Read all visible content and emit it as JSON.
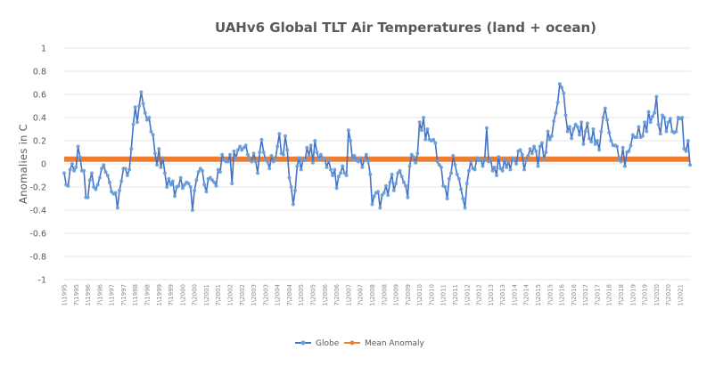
{
  "chart_data": {
    "type": "line",
    "title": "UAHv6 Global TLT Air Temperatures (land + ocean)",
    "xlabel": "",
    "ylabel": "Anomalies in C",
    "ylim": [
      -1,
      1
    ],
    "yticks": [
      "1",
      "0.8",
      "0.6",
      "0.4",
      "0.2",
      "0",
      "-0.2",
      "-0.4",
      "-0.6",
      "-0.8",
      "-1"
    ],
    "ytick_values": [
      1,
      0.8,
      0.6,
      0.4,
      0.2,
      0,
      -0.2,
      -0.4,
      -0.6,
      -0.8,
      -1
    ],
    "x_range": [
      "1\\1995",
      "1\\2021"
    ],
    "x_tick_labels": [
      "1\\1995",
      "7\\1995",
      "1\\1996",
      "7\\1996",
      "1\\1997",
      "7\\1997",
      "1\\1998",
      "7\\1998",
      "1\\1999",
      "7\\1999",
      "1\\2000",
      "7\\2000",
      "1\\2001",
      "7\\2001",
      "1\\2002",
      "7\\2002",
      "1\\2003",
      "7\\2003",
      "1\\2004",
      "7\\2004",
      "1\\2005",
      "7\\2005",
      "1\\2006",
      "7\\2006",
      "1\\2007",
      "7\\2007",
      "1\\2008",
      "7\\2008",
      "1\\2009",
      "7\\2009",
      "1\\2010",
      "7\\2010",
      "1\\2011",
      "7\\2011",
      "1\\2012",
      "7\\2012",
      "1\\2013",
      "7\\2013",
      "1\\2014",
      "7\\2014",
      "1\\2015",
      "7\\2015",
      "1\\2016",
      "7\\2016",
      "1\\2017",
      "7\\2017",
      "1\\2018",
      "7\\2018",
      "1\\2019",
      "7\\2019",
      "1\\2020",
      "7\\2020",
      "1\\2021"
    ],
    "grid": true,
    "legend_position": "bottom",
    "legend": [
      "Globe",
      "Mean Anomaly"
    ],
    "series": [
      {
        "name": "Globe",
        "color": "#4472c4",
        "marker_color": "#6a9fd8",
        "frequency": "monthly",
        "start": "1\\1995",
        "values": [
          -0.08,
          -0.18,
          -0.19,
          -0.05,
          0.0,
          -0.06,
          -0.03,
          0.15,
          0.06,
          -0.06,
          -0.06,
          -0.29,
          -0.29,
          -0.14,
          -0.08,
          -0.2,
          -0.22,
          -0.18,
          -0.12,
          -0.04,
          -0.01,
          -0.07,
          -0.1,
          -0.16,
          -0.24,
          -0.26,
          -0.25,
          -0.38,
          -0.23,
          -0.15,
          -0.04,
          -0.04,
          -0.1,
          -0.05,
          0.13,
          0.34,
          0.49,
          0.36,
          0.5,
          0.62,
          0.52,
          0.44,
          0.38,
          0.4,
          0.28,
          0.25,
          0.09,
          -0.01,
          0.13,
          -0.03,
          0.05,
          -0.08,
          -0.2,
          -0.13,
          -0.18,
          -0.15,
          -0.28,
          -0.2,
          -0.19,
          -0.12,
          -0.21,
          -0.18,
          -0.16,
          -0.17,
          -0.2,
          -0.4,
          -0.23,
          -0.14,
          -0.07,
          -0.04,
          -0.06,
          -0.18,
          -0.24,
          -0.13,
          -0.12,
          -0.14,
          -0.16,
          -0.19,
          -0.05,
          -0.07,
          0.08,
          0.04,
          0.02,
          0.02,
          0.08,
          -0.17,
          0.11,
          0.05,
          0.12,
          0.15,
          0.12,
          0.14,
          0.16,
          0.08,
          0.05,
          0.02,
          0.09,
          0.02,
          -0.08,
          0.1,
          0.21,
          0.1,
          0.04,
          0.02,
          -0.04,
          0.07,
          0.02,
          0.04,
          0.15,
          0.26,
          0.09,
          0.08,
          0.24,
          0.12,
          -0.12,
          -0.2,
          -0.35,
          -0.23,
          -0.02,
          0.05,
          -0.05,
          0.04,
          0.03,
          0.14,
          0.07,
          0.16,
          0.01,
          0.2,
          0.1,
          0.04,
          0.08,
          0.05,
          0.04,
          -0.03,
          0.03,
          -0.05,
          -0.1,
          -0.05,
          -0.21,
          -0.11,
          -0.08,
          -0.02,
          -0.08,
          -0.1,
          0.29,
          0.2,
          0.04,
          0.07,
          0.03,
          0.02,
          0.05,
          -0.03,
          0.04,
          0.08,
          0.02,
          -0.09,
          -0.35,
          -0.28,
          -0.25,
          -0.24,
          -0.38,
          -0.27,
          -0.25,
          -0.19,
          -0.27,
          -0.16,
          -0.09,
          -0.23,
          -0.17,
          -0.08,
          -0.06,
          -0.11,
          -0.16,
          -0.19,
          -0.29,
          -0.02,
          0.08,
          0.06,
          0.01,
          0.09,
          0.36,
          0.29,
          0.4,
          0.21,
          0.3,
          0.21,
          0.2,
          0.21,
          0.18,
          0.02,
          -0.01,
          -0.03,
          -0.19,
          -0.2,
          -0.3,
          -0.13,
          -0.08,
          0.07,
          -0.01,
          -0.09,
          -0.13,
          -0.22,
          -0.3,
          -0.38,
          -0.17,
          -0.06,
          0.02,
          -0.04,
          -0.05,
          0.05,
          0.03,
          0.04,
          -0.02,
          0.04,
          0.31,
          0.02,
          0.04,
          -0.06,
          -0.03,
          -0.1,
          0.06,
          -0.04,
          -0.06,
          0.04,
          -0.03,
          0.02,
          -0.05,
          0.05,
          0.04,
          0.0,
          0.11,
          0.12,
          0.08,
          -0.05,
          0.03,
          0.07,
          0.13,
          0.09,
          0.15,
          0.11,
          -0.02,
          0.15,
          0.18,
          0.04,
          0.1,
          0.28,
          0.21,
          0.24,
          0.37,
          0.44,
          0.53,
          0.69,
          0.66,
          0.61,
          0.42,
          0.28,
          0.32,
          0.22,
          0.3,
          0.34,
          0.32,
          0.25,
          0.36,
          0.17,
          0.28,
          0.35,
          0.22,
          0.19,
          0.3,
          0.17,
          0.2,
          0.12,
          0.28,
          0.4,
          0.48,
          0.38,
          0.27,
          0.2,
          0.16,
          0.16,
          0.15,
          0.05,
          0.02,
          0.14,
          -0.02,
          0.1,
          0.11,
          0.16,
          0.25,
          0.23,
          0.23,
          0.32,
          0.23,
          0.24,
          0.36,
          0.28,
          0.45,
          0.36,
          0.41,
          0.44,
          0.58,
          0.34,
          0.26,
          0.42,
          0.4,
          0.28,
          0.36,
          0.39,
          0.28,
          0.27,
          0.28,
          0.4,
          0.39,
          0.4,
          0.13,
          0.11,
          0.2,
          -0.01
        ]
      },
      {
        "name": "Mean Anomaly",
        "color": "#ed7d31",
        "constant_value": 0.04
      }
    ]
  }
}
